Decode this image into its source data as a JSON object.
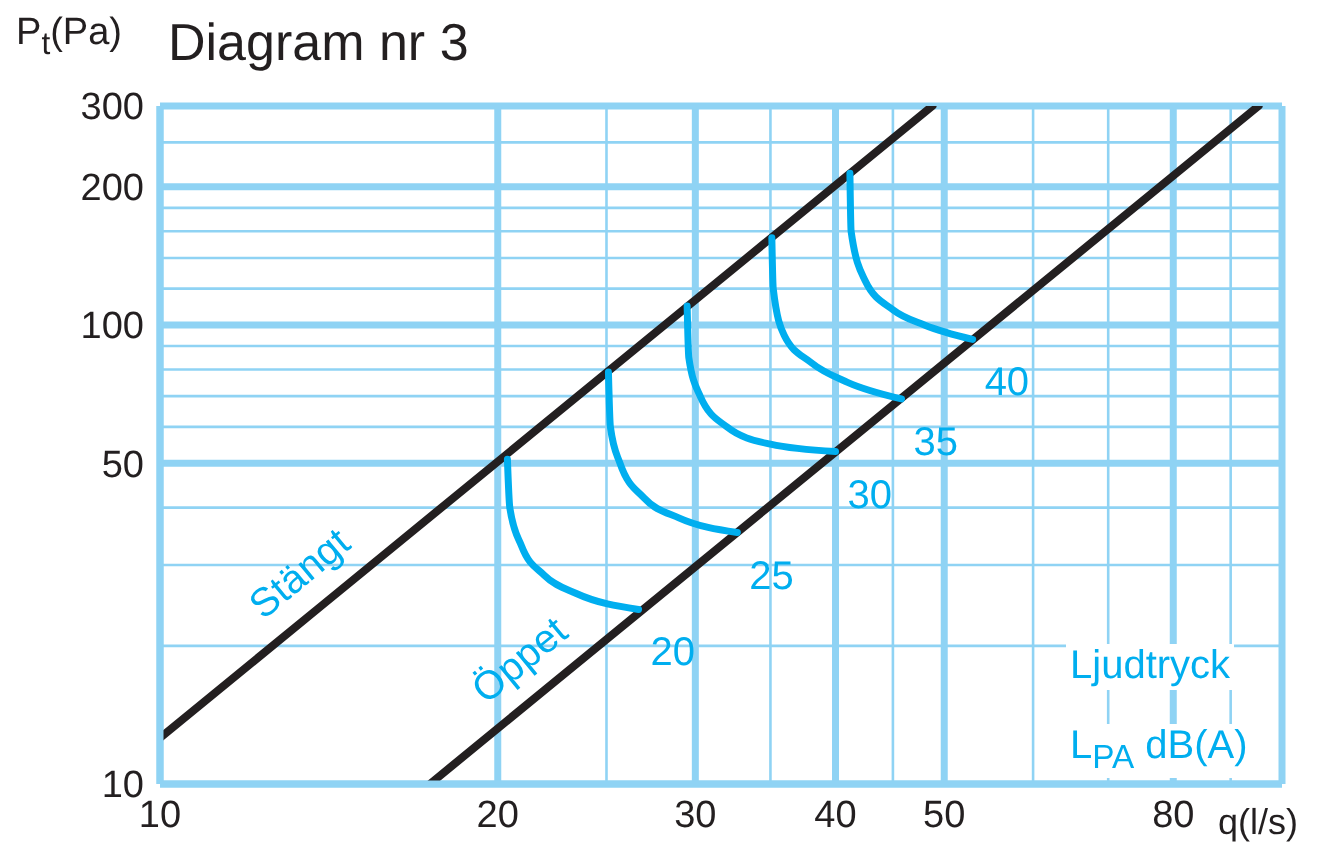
{
  "chart_data": {
    "type": "line",
    "title": "Diagram nr 3",
    "ylabel": "P$_{t}$(Pa)",
    "xlabel": "q(l/s)",
    "log": "xy",
    "xlim": [
      10,
      100
    ],
    "ylim": [
      10,
      300
    ],
    "xticks": [
      10,
      20,
      {
        "value": 25,
        "label": null
      },
      30,
      {
        "value": 35,
        "label": null
      },
      40,
      {
        "value": 45,
        "label": null
      },
      50,
      {
        "value": 60,
        "label": null
      },
      {
        "value": 70,
        "label": null
      },
      80,
      {
        "value": 90,
        "label": null
      }
    ],
    "yticks": [
      10,
      {
        "value": 20,
        "label": null
      },
      {
        "value": 30,
        "label": null
      },
      {
        "value": 40,
        "label": null
      },
      50,
      {
        "value": 60,
        "label": null
      },
      {
        "value": 70,
        "label": null
      },
      {
        "value": 80,
        "label": null
      },
      {
        "value": 90,
        "label": null
      },
      100,
      {
        "value": 120,
        "label": null
      },
      {
        "value": 140,
        "label": null
      },
      {
        "value": 160,
        "label": null
      },
      {
        "value": 180,
        "label": null
      },
      200,
      {
        "value": 250,
        "label": null
      },
      300
    ],
    "grid": true,
    "marker": "none",
    "line_style": "solid",
    "annotations": [
      "Ljudtryck",
      "L$_{PA}$ dB(A)"
    ],
    "series": [
      {
        "name": "Stängt",
        "color": "#231f20",
        "x": [
          10,
          14,
          48.8
        ],
        "values": [
          12.6,
          24.7,
          300
        ]
      },
      {
        "name": "Öppet",
        "color": "#231f20",
        "x": [
          17.4,
          22,
          95.3
        ],
        "values": [
          10,
          16,
          300
        ]
      },
      {
        "name": "20",
        "color": "#00aeef",
        "x": [
          20.4,
          20.5,
          21,
          22,
          23.5,
          26.7
        ],
        "values": [
          51,
          40,
          33,
          28.5,
          26,
          24
        ]
      },
      {
        "name": "25",
        "color": "#00aeef",
        "x": [
          25.1,
          25.2,
          25.7,
          27,
          29,
          32.7
        ],
        "values": [
          79,
          60,
          50,
          42,
          38,
          35.3
        ]
      },
      {
        "name": "30",
        "color": "#00aeef",
        "x": [
          29.5,
          29.6,
          30.3,
          32,
          35,
          40
        ],
        "values": [
          110,
          85,
          70,
          60,
          55,
          53
        ]
      },
      {
        "name": "35",
        "color": "#00aeef",
        "x": [
          35.1,
          35.2,
          36,
          38,
          41,
          45.8
        ],
        "values": [
          155,
          120,
          95,
          83,
          75,
          69
        ]
      },
      {
        "name": "40",
        "color": "#00aeef",
        "x": [
          41.2,
          41.3,
          42.5,
          45,
          48,
          53
        ],
        "values": [
          214,
          160,
          125,
          108,
          100,
          93
        ]
      }
    ]
  }
}
